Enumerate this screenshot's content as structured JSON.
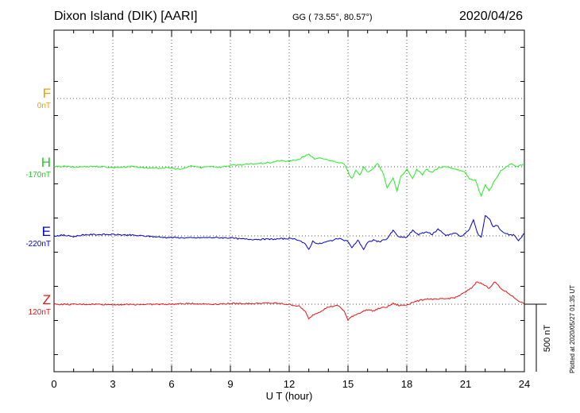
{
  "header": {
    "station": "Dixon Island (DIK)  [AARI]",
    "coords": "GG ( 73.55°,  80.57°)",
    "date": "2020/04/26"
  },
  "footer": {
    "plotted": "Plotted at 2020/05/27 01:35 UT"
  },
  "chart_data": {
    "type": "line",
    "xlabel": "U T (hour)",
    "xlim": [
      0,
      24
    ],
    "xticks": [
      0,
      3,
      6,
      9,
      12,
      15,
      18,
      21,
      24
    ],
    "scale_bar": {
      "label": "500 nT",
      "value_nT": 500
    },
    "grid": true,
    "series": [
      {
        "name": "F",
        "baseline": "0nT",
        "color": "#f0a000",
        "points": []
      },
      {
        "name": "H",
        "baseline": "-170nT",
        "color": "#22ee22",
        "points": [
          [
            0,
            0
          ],
          [
            0.5,
            3
          ],
          [
            1,
            -2
          ],
          [
            2,
            4
          ],
          [
            3,
            -5
          ],
          [
            4,
            3
          ],
          [
            5,
            -12
          ],
          [
            5.5,
            -8
          ],
          [
            6,
            -10
          ],
          [
            6.5,
            -20
          ],
          [
            7,
            8
          ],
          [
            7.5,
            -6
          ],
          [
            8,
            5
          ],
          [
            8.5,
            -3
          ],
          [
            9,
            10
          ],
          [
            9.5,
            15
          ],
          [
            10,
            20
          ],
          [
            11,
            30
          ],
          [
            11.5,
            45
          ],
          [
            12,
            40
          ],
          [
            12.5,
            55
          ],
          [
            13,
            95
          ],
          [
            13.3,
            55
          ],
          [
            13.6,
            65
          ],
          [
            14,
            50
          ],
          [
            14.5,
            35
          ],
          [
            14.8,
            20
          ],
          [
            15,
            -40
          ],
          [
            15.2,
            -90
          ],
          [
            15.4,
            -20
          ],
          [
            15.6,
            -60
          ],
          [
            15.8,
            -5
          ],
          [
            16,
            -40
          ],
          [
            16.3,
            -10
          ],
          [
            16.5,
            25
          ],
          [
            16.8,
            -50
          ],
          [
            17,
            -160
          ],
          [
            17.3,
            -80
          ],
          [
            17.5,
            -180
          ],
          [
            17.7,
            -70
          ],
          [
            18,
            -20
          ],
          [
            18.3,
            -90
          ],
          [
            18.5,
            -20
          ],
          [
            18.8,
            -60
          ],
          [
            19,
            -20
          ],
          [
            19.3,
            -40
          ],
          [
            19.6,
            -10
          ],
          [
            20,
            0
          ],
          [
            20.5,
            -15
          ],
          [
            21,
            -45
          ],
          [
            21.2,
            -90
          ],
          [
            21.5,
            -100
          ],
          [
            21.8,
            -220
          ],
          [
            22,
            -130
          ],
          [
            22.2,
            -180
          ],
          [
            22.5,
            -100
          ],
          [
            22.8,
            -30
          ],
          [
            23,
            -10
          ],
          [
            23.3,
            25
          ],
          [
            23.6,
            0
          ],
          [
            24,
            20
          ]
        ]
      },
      {
        "name": "E",
        "baseline": "-220nT",
        "color": "#0000cc",
        "points": [
          [
            0,
            0
          ],
          [
            0.5,
            5
          ],
          [
            1,
            -5
          ],
          [
            1.5,
            8
          ],
          [
            2,
            10
          ],
          [
            3,
            10
          ],
          [
            4,
            5
          ],
          [
            5,
            -5
          ],
          [
            5.5,
            -10
          ],
          [
            6,
            -12
          ],
          [
            7,
            -15
          ],
          [
            8,
            -12
          ],
          [
            9,
            -15
          ],
          [
            9.5,
            -22
          ],
          [
            10,
            -25
          ],
          [
            11,
            -25
          ],
          [
            11.5,
            -22
          ],
          [
            12,
            -20
          ],
          [
            12.5,
            -30
          ],
          [
            12.8,
            -60
          ],
          [
            13,
            -100
          ],
          [
            13.2,
            -40
          ],
          [
            13.5,
            -60
          ],
          [
            14,
            -40
          ],
          [
            14.5,
            -20
          ],
          [
            15,
            -40
          ],
          [
            15.2,
            -90
          ],
          [
            15.5,
            -30
          ],
          [
            15.8,
            -100
          ],
          [
            16,
            -50
          ],
          [
            16.3,
            -30
          ],
          [
            16.6,
            -45
          ],
          [
            17,
            -20
          ],
          [
            17.3,
            40
          ],
          [
            17.6,
            -10
          ],
          [
            18,
            -10
          ],
          [
            18.3,
            40
          ],
          [
            18.6,
            10
          ],
          [
            19,
            30
          ],
          [
            19.3,
            10
          ],
          [
            19.6,
            50
          ],
          [
            20,
            5
          ],
          [
            20.5,
            20
          ],
          [
            20.8,
            -5
          ],
          [
            21,
            20
          ],
          [
            21.2,
            50
          ],
          [
            21.4,
            120
          ],
          [
            21.6,
            20
          ],
          [
            21.8,
            -10
          ],
          [
            22,
            150
          ],
          [
            22.2,
            130
          ],
          [
            22.4,
            70
          ],
          [
            22.6,
            80
          ],
          [
            22.9,
            25
          ],
          [
            23.2,
            10
          ],
          [
            23.5,
            5
          ],
          [
            23.7,
            -40
          ],
          [
            24,
            20
          ]
        ]
      },
      {
        "name": "Z",
        "baseline": "120nT",
        "color": "#ee1111",
        "points": [
          [
            0,
            0
          ],
          [
            1,
            -2
          ],
          [
            2,
            0
          ],
          [
            3,
            -3
          ],
          [
            4,
            -2
          ],
          [
            5,
            -1
          ],
          [
            6,
            0
          ],
          [
            7,
            5
          ],
          [
            8,
            0
          ],
          [
            9,
            5
          ],
          [
            10,
            5
          ],
          [
            11,
            8
          ],
          [
            11.5,
            5
          ],
          [
            12,
            -2
          ],
          [
            12.5,
            -15
          ],
          [
            12.8,
            -50
          ],
          [
            13,
            -110
          ],
          [
            13.2,
            -80
          ],
          [
            13.5,
            -60
          ],
          [
            14,
            -20
          ],
          [
            14.5,
            -10
          ],
          [
            14.8,
            -50
          ],
          [
            15,
            -120
          ],
          [
            15.2,
            -90
          ],
          [
            15.5,
            -70
          ],
          [
            16,
            -40
          ],
          [
            16.3,
            -50
          ],
          [
            16.6,
            -30
          ],
          [
            17,
            -20
          ],
          [
            17.3,
            5
          ],
          [
            17.6,
            -10
          ],
          [
            18,
            -5
          ],
          [
            18.3,
            15
          ],
          [
            18.6,
            25
          ],
          [
            19,
            40
          ],
          [
            19.5,
            35
          ],
          [
            20,
            40
          ],
          [
            20.5,
            50
          ],
          [
            21,
            90
          ],
          [
            21.3,
            120
          ],
          [
            21.6,
            170
          ],
          [
            21.9,
            145
          ],
          [
            22.2,
            120
          ],
          [
            22.5,
            165
          ],
          [
            22.8,
            115
          ],
          [
            23.2,
            80
          ],
          [
            23.6,
            35
          ],
          [
            24,
            0
          ]
        ]
      }
    ]
  }
}
